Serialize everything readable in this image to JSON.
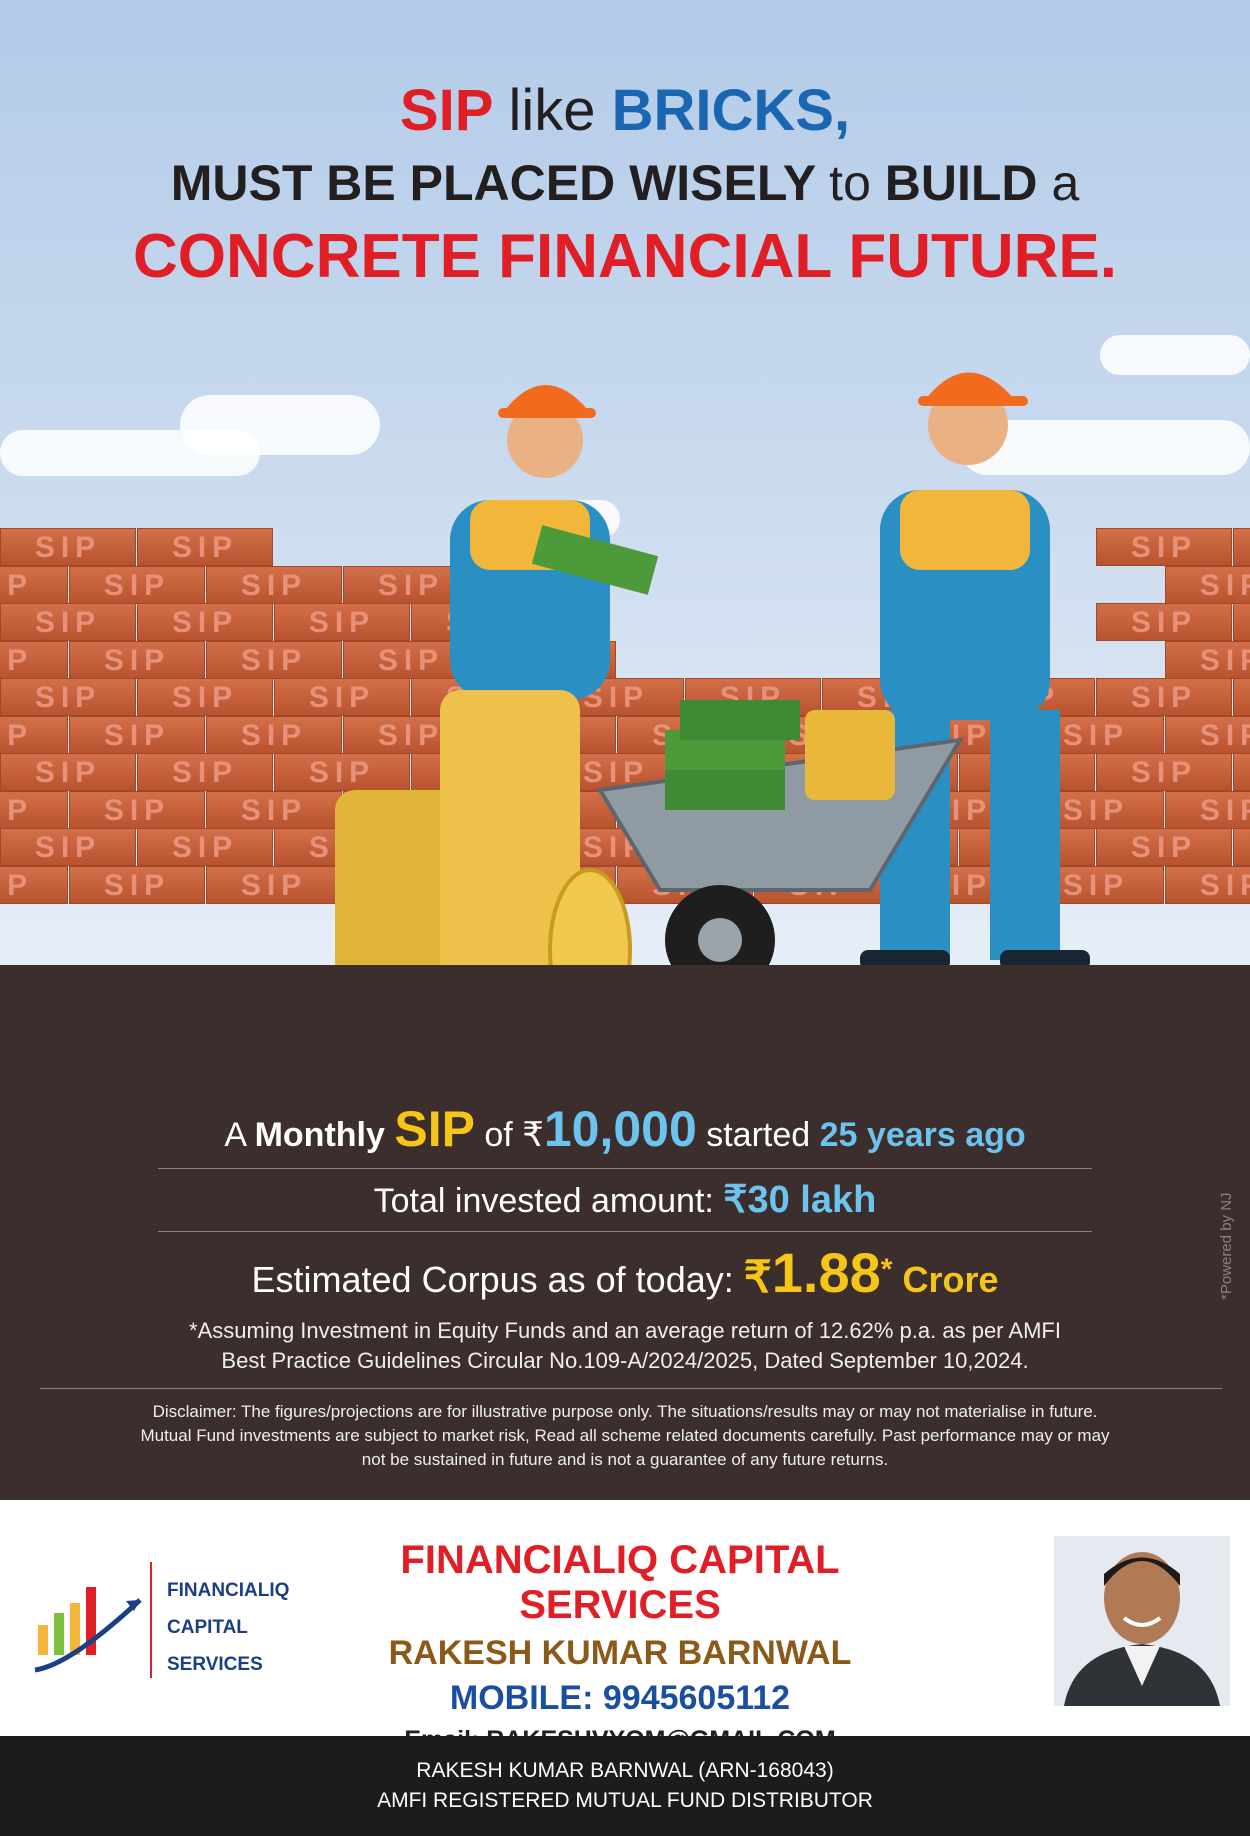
{
  "headline": {
    "line1": {
      "sip": "SIP",
      "like": "like",
      "bricks": "BRICKS,"
    },
    "line2": {
      "part1": "MUST BE PLACED WISELY",
      "to": "to",
      "build": "BUILD",
      "a": "a"
    },
    "line3": "CONCRETE FINANCIAL FUTURE."
  },
  "brick_label": "SIP",
  "info": {
    "monthly": {
      "a": "A",
      "monthly": "Monthly",
      "sip": "SIP",
      "of": "of",
      "rupee": "₹",
      "amount": "10,000",
      "started": "started",
      "years": "25 years ago"
    },
    "invested": {
      "label": "Total invested amount:",
      "value": "₹30 lakh"
    },
    "corpus": {
      "label": "Estimated Corpus as of today:",
      "rupee": "₹",
      "value": "1.88",
      "star": "*",
      "unit": "Crore"
    },
    "assumption_line1": "*Assuming Investment in Equity Funds and an average return of 12.62% p.a. as per AMFI",
    "assumption_line2": "Best Practice  Guidelines Circular No.109-A/2024/2025, Dated September 10,2024.",
    "disclaimer_line1": "Disclaimer: The figures/projections are for illustrative purpose only. The situations/results may or may not materialise in future.",
    "disclaimer_line2": "Mutual Fund investments are subject to market risk, Read all scheme related documents carefully. Past performance may or may",
    "disclaimer_line3": "not be sustained in future and is not a guarantee of any future returns.",
    "powered_by": "*Powered by NJ"
  },
  "footer": {
    "logo_text": [
      "FINANCIALIQ",
      "CAPITAL",
      "SERVICES"
    ],
    "firm_name": "FINANCIALIQ CAPITAL SERVICES",
    "person": "RAKESH KUMAR BARNWAL",
    "mobile": "MOBILE: 9945605112",
    "email": "Email: RAKESHVYOM@GMAIL.COM"
  },
  "bottom_bar": {
    "line1": "RAKESH KUMAR BARNWAL (ARN-168043)",
    "line2": "AMFI REGISTERED MUTUAL FUND DISTRIBUTOR"
  },
  "colors": {
    "red": "#e01e25",
    "blue": "#1a66b1",
    "yellow": "#f5c518",
    "light_blue": "#6cc4ee",
    "ground": "#3c2e2d"
  }
}
